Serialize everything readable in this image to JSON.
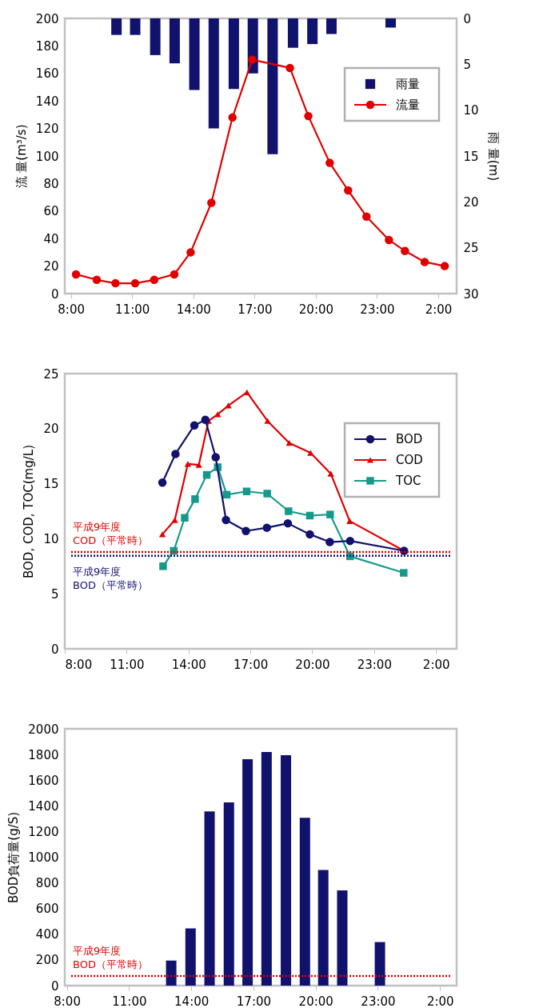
{
  "chart_data": [
    {
      "type": "line",
      "ylabel": "流 量(m³/s)",
      "y2label": "雨 量(m)",
      "legend": "top right",
      "xlim": [
        "2000-01-01T07:42",
        "2000-01-02T02:54"
      ],
      "xticks": [
        {
          "value": "2000-01-01T08:00",
          "label": "8:00"
        },
        {
          "value": "2000-01-01T11:00",
          "label": "11:00"
        },
        {
          "value": "2000-01-01T14:00",
          "label": "14:00"
        },
        {
          "value": "2000-01-01T17:00",
          "label": "17:00"
        },
        {
          "value": "2000-01-01T20:00",
          "label": "20:00"
        },
        {
          "value": "2000-01-01T23:00",
          "label": "23:00"
        },
        {
          "value": "2000-01-02T02:00",
          "label": "2:00"
        }
      ],
      "ylim": [
        0,
        200
      ],
      "yticks": [
        0,
        20,
        40,
        60,
        80,
        100,
        120,
        140,
        160,
        180,
        200
      ],
      "y2lim": [
        30,
        0
      ],
      "y2ticks": [
        0,
        5,
        10,
        15,
        20,
        25,
        30
      ],
      "series": [
        {
          "name": "雨量",
          "type": "bar",
          "axis": "y2",
          "color": "#11116e",
          "x": [
            "2000-01-01T10:14",
            "2000-01-01T11:09",
            "2000-01-01T12:08",
            "2000-01-01T13:05",
            "2000-01-01T14:03",
            "2000-01-01T15:00",
            "2000-01-01T15:59",
            "2000-01-01T16:55",
            "2000-01-01T17:53",
            "2000-01-01T18:53",
            "2000-01-01T19:50",
            "2000-01-01T20:46",
            "2000-01-01T23:40"
          ],
          "values": [
            1.8,
            1.8,
            4.0,
            4.9,
            7.8,
            12.0,
            7.7,
            6.0,
            14.8,
            3.2,
            2.8,
            1.7,
            1.0
          ]
        },
        {
          "name": "流量",
          "type": "line",
          "marker": "circle",
          "color": "#e00000",
          "x": [
            "2000-01-01T08:15",
            "2000-01-01T09:16",
            "2000-01-01T10:11",
            "2000-01-01T11:09",
            "2000-01-01T12:05",
            "2000-01-01T13:04",
            "2000-01-01T13:52",
            "2000-01-01T14:53",
            "2000-01-01T15:55",
            "2000-01-01T16:53",
            "2000-01-01T18:44",
            "2000-01-01T19:38",
            "2000-01-01T20:41",
            "2000-01-01T21:35",
            "2000-01-01T22:29",
            "2000-01-01T23:35",
            "2000-01-02T00:22",
            "2000-01-02T01:20",
            "2000-01-02T02:19"
          ],
          "values": [
            14,
            10,
            7.5,
            7.5,
            10,
            14,
            30,
            66,
            128,
            170,
            164,
            129,
            95,
            75,
            56,
            39,
            31,
            23,
            20
          ]
        }
      ]
    },
    {
      "type": "line",
      "ylabel": "BOD, COD, TOC(mg/L)",
      "legend": "top right",
      "xlim": [
        "2000-01-01T08:00",
        "2000-01-02T03:00"
      ],
      "xticks": [
        {
          "value": "2000-01-01T08:00",
          "label": "8:00"
        },
        {
          "value": "2000-01-01T11:00",
          "label": "11:00"
        },
        {
          "value": "2000-01-01T14:00",
          "label": "14:00"
        },
        {
          "value": "2000-01-01T17:00",
          "label": "17:00"
        },
        {
          "value": "2000-01-01T20:00",
          "label": "20:00"
        },
        {
          "value": "2000-01-01T23:00",
          "label": "23:00"
        },
        {
          "value": "2000-01-02T02:00",
          "label": "2:00"
        }
      ],
      "ylim": [
        0,
        25
      ],
      "yticks": [
        0,
        5,
        10,
        15,
        20,
        25
      ],
      "series": [
        {
          "name": "BOD",
          "marker": "circle",
          "color": "#11116e",
          "x": [
            "2000-01-01T12:44",
            "2000-01-01T13:22",
            "2000-01-01T14:17",
            "2000-01-01T14:49",
            "2000-01-01T15:19",
            "2000-01-01T15:49",
            "2000-01-01T16:47",
            "2000-01-01T17:48",
            "2000-01-01T18:49",
            "2000-01-01T19:53",
            "2000-01-01T20:51",
            "2000-01-01T21:50",
            "2000-01-02T00:27"
          ],
          "values": [
            15.1,
            17.7,
            20.3,
            20.8,
            17.4,
            11.7,
            10.7,
            11.0,
            11.4,
            10.4,
            9.7,
            9.8,
            8.9
          ]
        },
        {
          "name": "COD",
          "marker": "triangle",
          "color": "#e00000",
          "x": [
            "2000-01-01T12:44",
            "2000-01-01T13:20",
            "2000-01-01T13:58",
            "2000-01-01T14:30",
            "2000-01-01T14:58",
            "2000-01-01T15:25",
            "2000-01-01T15:56",
            "2000-01-01T16:50",
            "2000-01-01T17:50",
            "2000-01-01T18:53",
            "2000-01-01T19:55",
            "2000-01-01T20:54",
            "2000-01-01T21:49",
            "2000-01-02T00:27"
          ],
          "values": [
            10.4,
            11.7,
            16.8,
            16.7,
            20.7,
            21.3,
            22.1,
            23.3,
            20.7,
            18.7,
            17.8,
            15.9,
            11.6,
            8.9
          ]
        },
        {
          "name": "TOC",
          "marker": "square",
          "color": "#16998a",
          "x": [
            "2000-01-01T12:46",
            "2000-01-01T13:17",
            "2000-01-01T13:49",
            "2000-01-01T14:19",
            "2000-01-01T14:53",
            "2000-01-01T15:25",
            "2000-01-01T15:51",
            "2000-01-01T16:49",
            "2000-01-01T17:49",
            "2000-01-01T18:51",
            "2000-01-01T19:53",
            "2000-01-01T20:52",
            "2000-01-01T21:50",
            "2000-01-02T00:26"
          ],
          "values": [
            7.5,
            8.9,
            11.9,
            13.6,
            15.8,
            16.5,
            14.0,
            14.3,
            14.1,
            12.5,
            12.1,
            12.2,
            8.4,
            6.9
          ]
        }
      ],
      "ref_lines": [
        {
          "axis": "y",
          "value": 8.8,
          "label": "平成9年度\nCOD（平常時）",
          "color": "#e00000",
          "line_style": "dotted"
        },
        {
          "axis": "y",
          "value": 8.45,
          "label": "平成9年度\nBOD（平常時）",
          "color": "#11116e",
          "line_style": "dotted"
        }
      ]
    },
    {
      "type": "bar",
      "ylabel": "BOD負荷量(g/S)",
      "color": "#11116e",
      "xlim": [
        "2000-01-01T07:54",
        "2000-01-02T02:48"
      ],
      "xticks": [
        {
          "value": "2000-01-01T08:00",
          "label": "8:00"
        },
        {
          "value": "2000-01-01T11:00",
          "label": "11:00"
        },
        {
          "value": "2000-01-01T14:00",
          "label": "14:00"
        },
        {
          "value": "2000-01-01T17:00",
          "label": "17:00"
        },
        {
          "value": "2000-01-01T20:00",
          "label": "20:00"
        },
        {
          "value": "2000-01-01T23:00",
          "label": "23:00"
        },
        {
          "value": "2000-01-02T02:00",
          "label": "2:00"
        }
      ],
      "ylim": [
        0,
        2000
      ],
      "yticks": [
        0,
        200,
        400,
        600,
        800,
        1000,
        1200,
        1400,
        1600,
        1800,
        2000
      ],
      "x": [
        "2000-01-01T13:02",
        "2000-01-01T13:58",
        "2000-01-01T14:53",
        "2000-01-01T15:49",
        "2000-01-01T16:43",
        "2000-01-01T17:38",
        "2000-01-01T18:34",
        "2000-01-01T19:29",
        "2000-01-01T20:22",
        "2000-01-01T21:17",
        "2000-01-01T23:06"
      ],
      "values": [
        195,
        445,
        1357,
        1427,
        1763,
        1819,
        1795,
        1307,
        901,
        741,
        339
      ],
      "ref_lines": [
        {
          "axis": "y",
          "value": 75,
          "label": "平成9年度\nBOD（平常時）",
          "color": "#e00000",
          "line_style": "dotted"
        }
      ]
    }
  ]
}
